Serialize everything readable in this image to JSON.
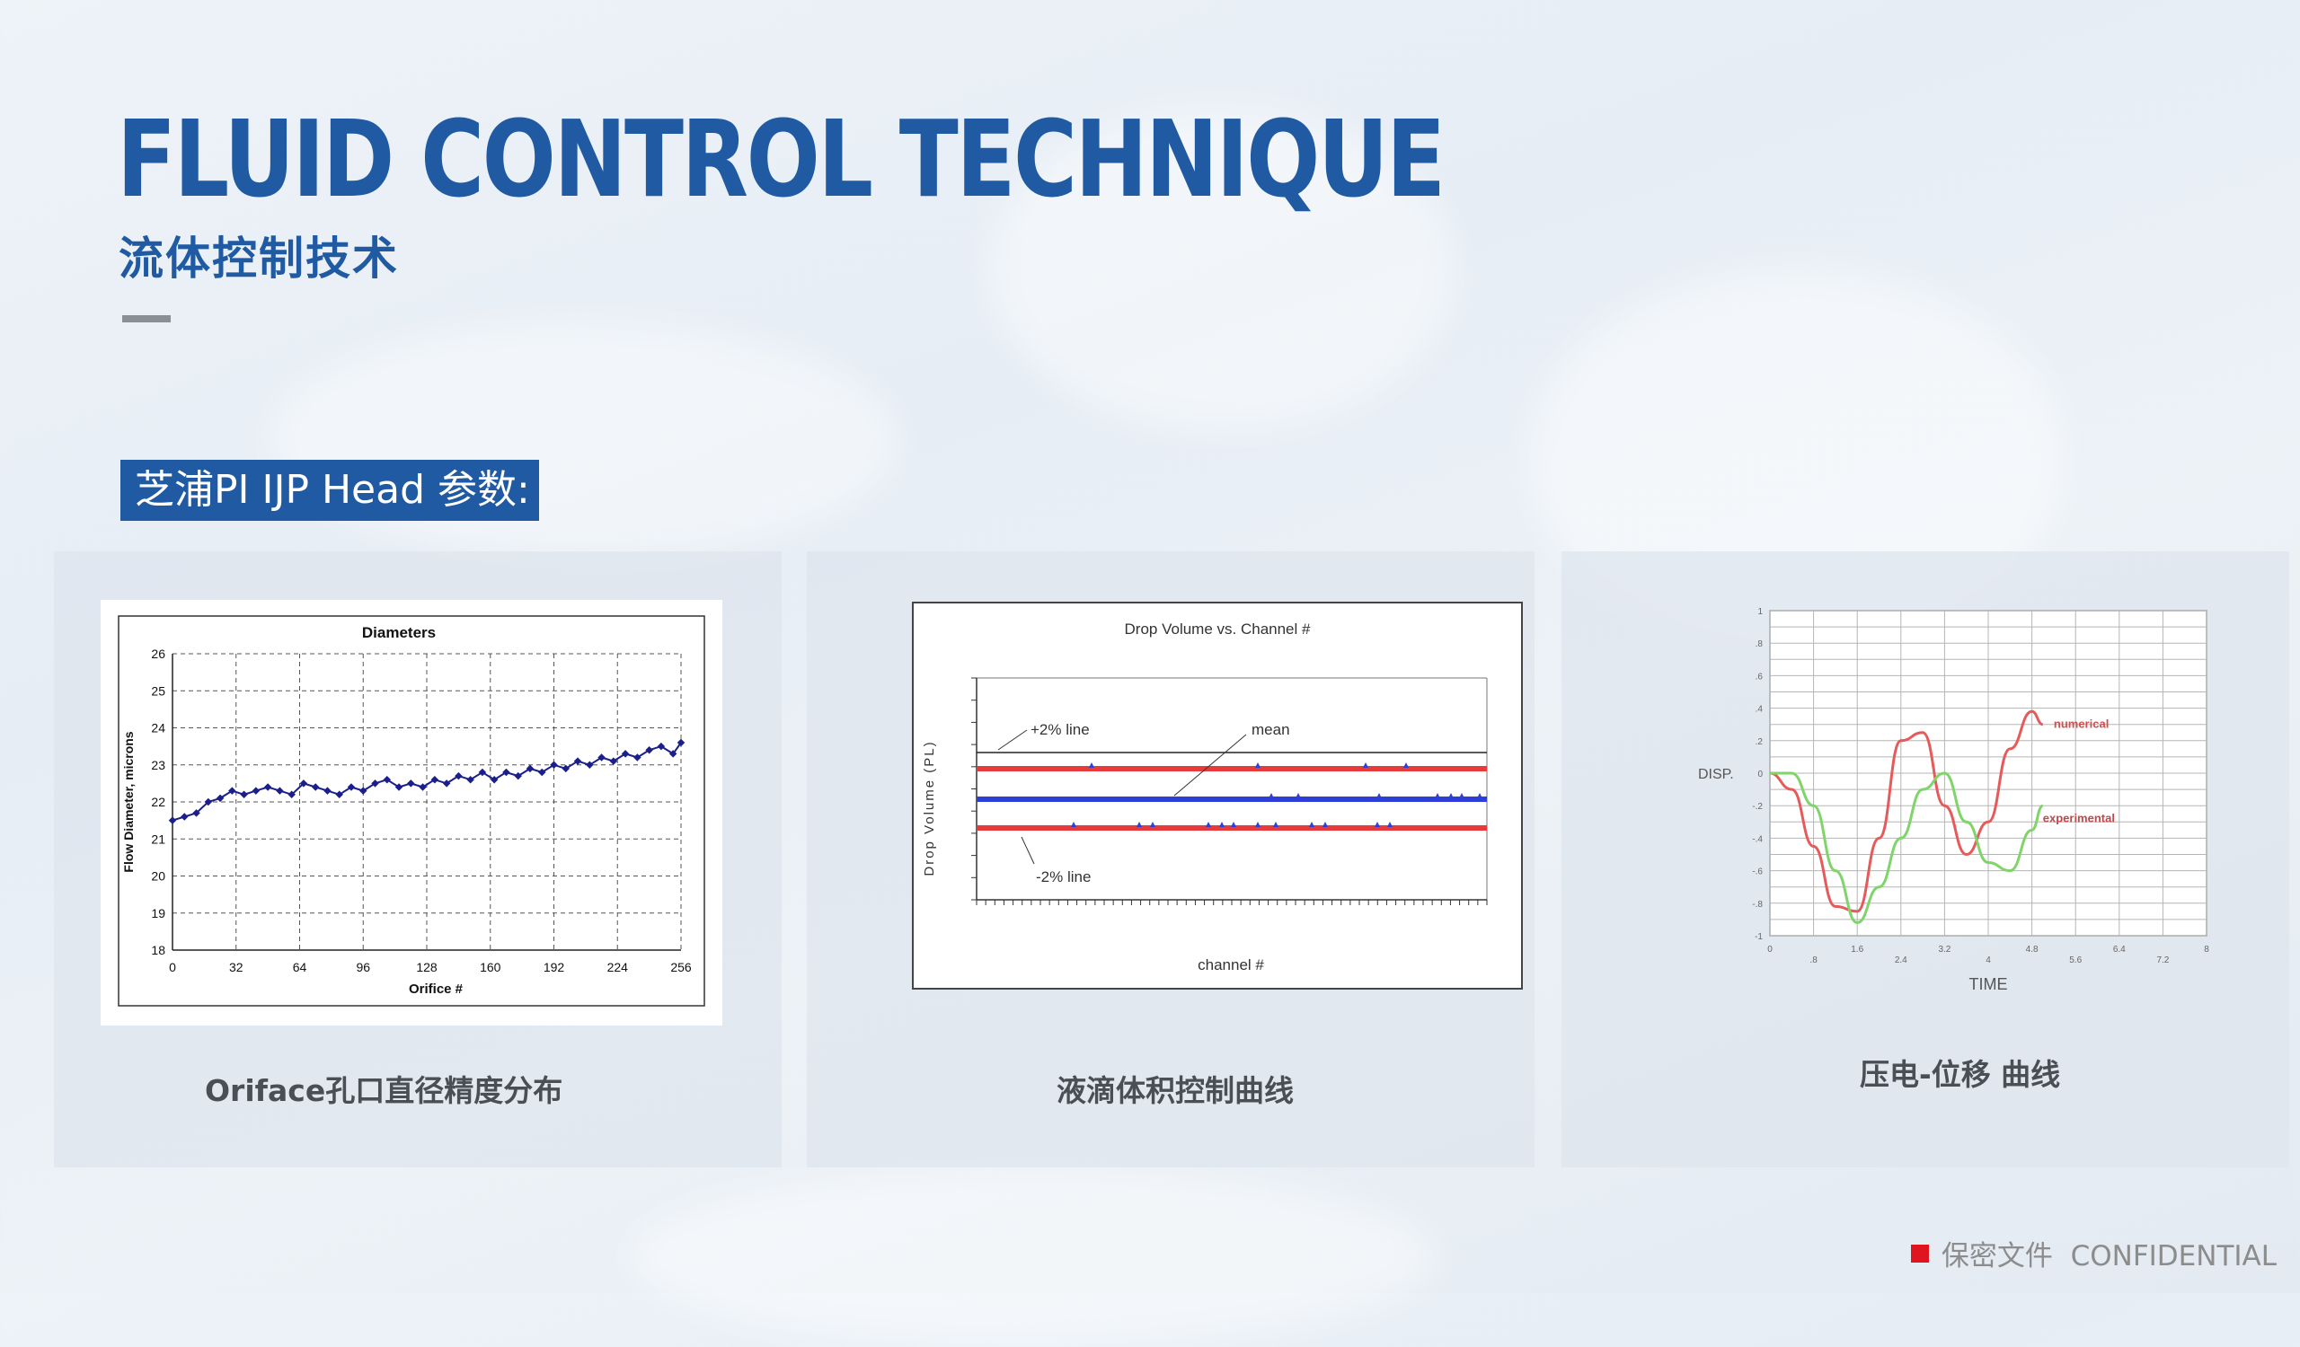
{
  "title": {
    "en": "FLUID CONTROL TECHNIQUE",
    "cn": "流体控制技术"
  },
  "section_label": "芝浦PI IJP Head 参数:",
  "cards": [
    {
      "caption": "Oriface孔口直径精度分布"
    },
    {
      "caption": "液滴体积控制曲线"
    },
    {
      "caption": "压电-位移 曲线"
    }
  ],
  "footer": {
    "text": "保密文件  CONFIDENTIAL",
    "mark_color": "#e0141e"
  },
  "chart_data": [
    {
      "type": "scatter",
      "title": "Diameters",
      "xlabel": "Orifice #",
      "ylabel": "Flow Diameter, microns",
      "xlim": [
        0,
        256
      ],
      "ylim": [
        18,
        26
      ],
      "xticks": [
        "0",
        "32",
        "64",
        "96",
        "128",
        "160",
        "192",
        "224",
        "256"
      ],
      "yticks": [
        "18",
        "19",
        "20",
        "21",
        "22",
        "23",
        "24",
        "25",
        "26"
      ],
      "grid": true,
      "series": [
        {
          "color": "#1a1f8c",
          "x": [
            0,
            6,
            12,
            18,
            24,
            30,
            36,
            42,
            48,
            54,
            60,
            66,
            72,
            78,
            84,
            90,
            96,
            102,
            108,
            114,
            120,
            126,
            132,
            138,
            144,
            150,
            156,
            162,
            168,
            174,
            180,
            186,
            192,
            198,
            204,
            210,
            216,
            222,
            228,
            234,
            240,
            246,
            252,
            256
          ],
          "y": [
            21.5,
            21.6,
            21.7,
            22.0,
            22.1,
            22.3,
            22.2,
            22.3,
            22.4,
            22.3,
            22.2,
            22.5,
            22.4,
            22.3,
            22.2,
            22.4,
            22.3,
            22.5,
            22.6,
            22.4,
            22.5,
            22.4,
            22.6,
            22.5,
            22.7,
            22.6,
            22.8,
            22.6,
            22.8,
            22.7,
            22.9,
            22.8,
            23.0,
            22.9,
            23.1,
            23.0,
            23.2,
            23.1,
            23.3,
            23.2,
            23.4,
            23.5,
            23.3,
            23.6
          ]
        }
      ]
    },
    {
      "type": "line",
      "title": "Drop Volume vs. Channel #",
      "xlabel": "channel #",
      "ylabel": "Drop Volume (PL)",
      "annotations": [
        "+2% line",
        "mean",
        "-2% line"
      ],
      "series": [
        {
          "color": "#e83a3a",
          "level": 2
        },
        {
          "color": "#2e3fd9",
          "level": 0
        },
        {
          "color": "#e83a3a",
          "level": -2
        }
      ]
    },
    {
      "type": "line",
      "xlabel": "TIME",
      "ylabel": "DISP.",
      "xlim": [
        0,
        8
      ],
      "ylim": [
        -1,
        1
      ],
      "xticks": [
        "0",
        ".8",
        "1.6",
        "2.4",
        "3.2",
        "4",
        "4.8",
        "5.6",
        "6.4",
        "7.2",
        "8"
      ],
      "yticks": [
        "1",
        ".8",
        ".6",
        ".4",
        ".2",
        "0",
        "-.2",
        "-.4",
        "-.6",
        "-.8",
        "-1"
      ],
      "grid": true,
      "series": [
        {
          "name": "numerical",
          "color": "#e65a5a",
          "x": [
            0,
            0.4,
            0.8,
            1.2,
            1.6,
            2.0,
            2.4,
            2.8,
            3.2,
            3.6,
            4.0,
            4.4,
            4.8,
            5.0
          ],
          "y": [
            0,
            -0.1,
            -0.45,
            -0.82,
            -0.85,
            -0.4,
            0.2,
            0.25,
            -0.2,
            -0.5,
            -0.3,
            0.15,
            0.38,
            0.3
          ]
        },
        {
          "name": "experimental",
          "color": "#7fd46a",
          "x": [
            0,
            0.4,
            0.8,
            1.2,
            1.6,
            2.0,
            2.4,
            2.8,
            3.2,
            3.6,
            4.0,
            4.4,
            4.8,
            5.0
          ],
          "y": [
            0,
            0,
            -0.2,
            -0.6,
            -0.92,
            -0.7,
            -0.4,
            -0.1,
            0.0,
            -0.3,
            -0.55,
            -0.6,
            -0.35,
            -0.2
          ]
        }
      ]
    }
  ]
}
